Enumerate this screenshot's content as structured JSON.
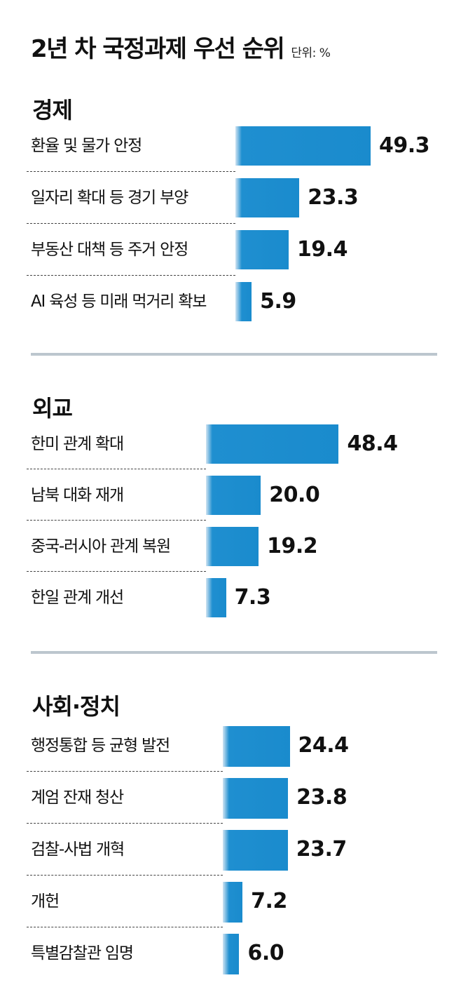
{
  "title": "2년 차 국정과제 우선 순위",
  "unit": "단위: %",
  "chart_data": [
    {
      "type": "bar",
      "title": "경제",
      "categories": [
        "환율 및 물가 안정",
        "일자리 확대 등 경기 부양",
        "부동산 대책 등 주거 안정",
        "AI 육성 등 미래 먹거리 확보"
      ],
      "values": [
        49.3,
        23.3,
        19.4,
        5.9
      ],
      "value_labels": [
        "49.3",
        "23.3",
        "19.4",
        "5.9"
      ],
      "orientation": "horizontal",
      "bar_color": "#1a8bcd"
    },
    {
      "type": "bar",
      "title": "외교",
      "categories": [
        "한미 관계 확대",
        "남북 대화 재개",
        "중국-러시아 관계 복원",
        "한일 관계 개선"
      ],
      "values": [
        48.4,
        20.0,
        19.2,
        7.3
      ],
      "value_labels": [
        "48.4",
        "20.0",
        "19.2",
        "7.3"
      ],
      "orientation": "horizontal",
      "bar_color": "#1a8bcd"
    },
    {
      "type": "bar",
      "title": "사회·정치",
      "categories": [
        "행정통합 등 균형 발전",
        "계엄 잔재 청산",
        "검찰-사법 개혁",
        "개헌",
        "특별감찰관 임명"
      ],
      "values": [
        24.4,
        23.8,
        23.7,
        7.2,
        6.0
      ],
      "value_labels": [
        "24.4",
        "23.8",
        "23.7",
        "7.2",
        "6.0"
      ],
      "orientation": "horizontal",
      "bar_color": "#1a8bcd"
    }
  ]
}
